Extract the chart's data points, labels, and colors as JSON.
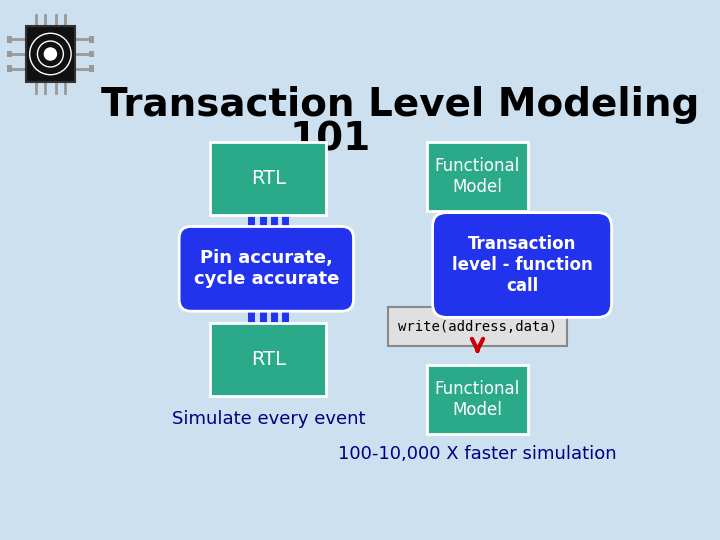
{
  "title_line1": "Transaction Level Modeling",
  "title_line2": "101",
  "bg_color": "#cce0f0",
  "teal_color": "#2aaa88",
  "blue_color": "#2233ee",
  "blue_dark": "#1122cc",
  "white": "#ffffff",
  "black": "#000000",
  "red_arrow": "#cc0000",
  "simulate_text": "Simulate every event",
  "faster_text": "100-10,000 X faster simulation",
  "title_fontsize": 28,
  "subtitle_fontsize": 28
}
